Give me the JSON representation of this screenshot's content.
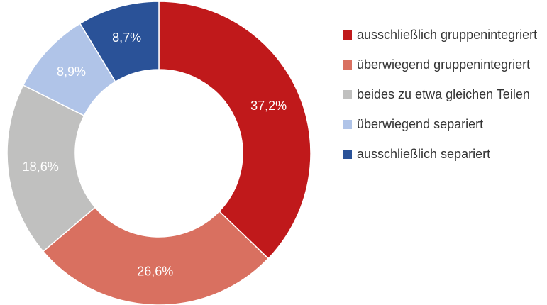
{
  "chart_data": {
    "type": "donut",
    "categories": [
      "ausschließlich gruppenintegriert",
      "überwiegend gruppenintegriert",
      "beides zu etwa gleichen Teilen",
      "überwiegend separiert",
      "ausschließlich separiert"
    ],
    "values": [
      37.2,
      26.6,
      18.6,
      8.9,
      8.7
    ],
    "value_labels": [
      "37,2%",
      "26,6%",
      "18,6%",
      "8,9%",
      "8,7%"
    ],
    "colors": [
      "#c0191b",
      "#d97060",
      "#c0c0bf",
      "#b0c4e8",
      "#2a5298"
    ]
  }
}
